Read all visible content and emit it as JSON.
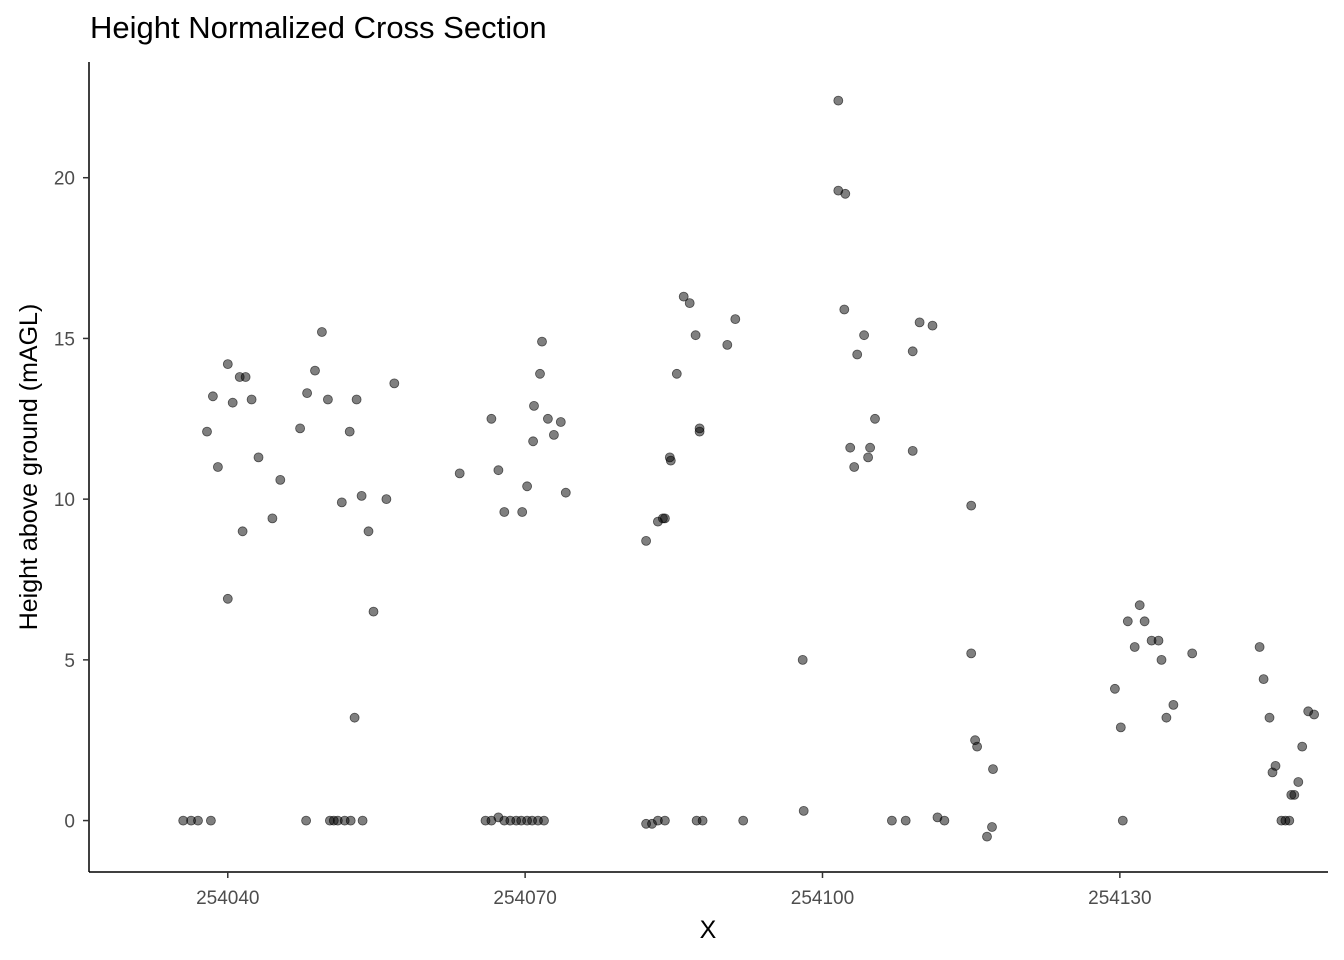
{
  "chart_data": {
    "type": "scatter",
    "title": "Height Normalized Cross Section",
    "xlabel": "X",
    "ylabel": "Height above ground (mAGL)",
    "xlim": [
      254026,
      254151
    ],
    "ylim": [
      -1.6,
      23.6
    ],
    "x_ticks": [
      254040,
      254070,
      254100,
      254130
    ],
    "x_tick_labels": [
      "254040",
      "254070",
      "254100",
      "254130"
    ],
    "y_ticks": [
      0,
      5,
      10,
      15,
      20
    ],
    "y_tick_labels": [
      "0",
      "5",
      "10",
      "15",
      "20"
    ],
    "grid": false,
    "point_color": "#000000",
    "point_alpha": 0.5,
    "points": [
      [
        254035.5,
        0
      ],
      [
        254036.3,
        0
      ],
      [
        254037,
        0
      ],
      [
        254038.3,
        0
      ],
      [
        254037.9,
        12.1
      ],
      [
        254038.5,
        13.2
      ],
      [
        254039,
        11
      ],
      [
        254040,
        14.2
      ],
      [
        254040.5,
        13
      ],
      [
        254041.2,
        13.8
      ],
      [
        254041.8,
        13.8
      ],
      [
        254042.4,
        13.1
      ],
      [
        254043.1,
        11.3
      ],
      [
        254041.5,
        9
      ],
      [
        254040,
        6.9
      ],
      [
        254044.5,
        9.4
      ],
      [
        254045.3,
        10.6
      ],
      [
        254047.3,
        12.2
      ],
      [
        254048,
        13.3
      ],
      [
        254048.8,
        14
      ],
      [
        254049.5,
        15.2
      ],
      [
        254050.1,
        13.1
      ],
      [
        254051.5,
        9.9
      ],
      [
        254052.3,
        12.1
      ],
      [
        254053,
        13.1
      ],
      [
        254053.5,
        10.1
      ],
      [
        254054.2,
        9
      ],
      [
        254054.7,
        6.5
      ],
      [
        254052.8,
        3.2
      ],
      [
        254056,
        10
      ],
      [
        254056.8,
        13.6
      ],
      [
        254047.9,
        0
      ],
      [
        254050.3,
        0
      ],
      [
        254050.7,
        0
      ],
      [
        254051.1,
        0
      ],
      [
        254051.8,
        0
      ],
      [
        254052.4,
        0
      ],
      [
        254053.6,
        0
      ],
      [
        254063.4,
        10.8
      ],
      [
        254066.6,
        12.5
      ],
      [
        254067.3,
        10.9
      ],
      [
        254067.9,
        9.6
      ],
      [
        254069.7,
        9.6
      ],
      [
        254070.2,
        10.4
      ],
      [
        254070.8,
        11.8
      ],
      [
        254070.9,
        12.9
      ],
      [
        254071.5,
        13.9
      ],
      [
        254071.7,
        14.9
      ],
      [
        254072.3,
        12.5
      ],
      [
        254072.9,
        12
      ],
      [
        254073.6,
        12.4
      ],
      [
        254074.1,
        10.2
      ],
      [
        254066,
        0
      ],
      [
        254066.6,
        0
      ],
      [
        254067.3,
        0.1
      ],
      [
        254067.9,
        0
      ],
      [
        254068.5,
        0
      ],
      [
        254069.1,
        0
      ],
      [
        254069.6,
        0
      ],
      [
        254070.2,
        0
      ],
      [
        254070.7,
        0
      ],
      [
        254071.3,
        0
      ],
      [
        254071.9,
        0
      ],
      [
        254082.2,
        8.7
      ],
      [
        254083.4,
        9.3
      ],
      [
        254083.9,
        9.4
      ],
      [
        254084.1,
        9.4
      ],
      [
        254084.6,
        11.3
      ],
      [
        254084.7,
        11.2
      ],
      [
        254085.3,
        13.9
      ],
      [
        254086,
        16.3
      ],
      [
        254086.6,
        16.1
      ],
      [
        254087.2,
        15.1
      ],
      [
        254087.6,
        12.1
      ],
      [
        254087.6,
        12.2
      ],
      [
        254090.4,
        14.8
      ],
      [
        254091.2,
        15.6
      ],
      [
        254082.2,
        -0.1
      ],
      [
        254082.8,
        -0.1
      ],
      [
        254083.4,
        0
      ],
      [
        254084.1,
        0
      ],
      [
        254087.3,
        0
      ],
      [
        254087.9,
        0
      ],
      [
        254092,
        0
      ],
      [
        254098,
        5
      ],
      [
        254098.1,
        0.3
      ],
      [
        254101.6,
        22.4
      ],
      [
        254101.6,
        19.6
      ],
      [
        254102.3,
        19.5
      ],
      [
        254102.2,
        15.9
      ],
      [
        254102.8,
        11.6
      ],
      [
        254103.2,
        11
      ],
      [
        254103.5,
        14.5
      ],
      [
        254104.2,
        15.1
      ],
      [
        254104.6,
        11.3
      ],
      [
        254104.8,
        11.6
      ],
      [
        254105.3,
        12.5
      ],
      [
        254109.1,
        14.6
      ],
      [
        254109.1,
        11.5
      ],
      [
        254109.8,
        15.5
      ],
      [
        254111.1,
        15.4
      ],
      [
        254107,
        0
      ],
      [
        254108.4,
        0
      ],
      [
        254111.6,
        0.1
      ],
      [
        254112.3,
        0
      ],
      [
        254115,
        9.8
      ],
      [
        254115,
        5.2
      ],
      [
        254115.4,
        2.5
      ],
      [
        254115.6,
        2.3
      ],
      [
        254117.2,
        1.6
      ],
      [
        254116.6,
        -0.5
      ],
      [
        254117.1,
        -0.2
      ],
      [
        254129.5,
        4.1
      ],
      [
        254130.1,
        2.9
      ],
      [
        254130.3,
        0
      ],
      [
        254130.8,
        6.2
      ],
      [
        254131.5,
        5.4
      ],
      [
        254132,
        6.7
      ],
      [
        254132.5,
        6.2
      ],
      [
        254133.2,
        5.6
      ],
      [
        254133.9,
        5.6
      ],
      [
        254134.2,
        5
      ],
      [
        254134.7,
        3.2
      ],
      [
        254135.4,
        3.6
      ],
      [
        254137.3,
        5.2
      ],
      [
        254144.1,
        5.4
      ],
      [
        254144.5,
        4.4
      ],
      [
        254145.1,
        3.2
      ],
      [
        254145.4,
        1.5
      ],
      [
        254145.7,
        1.7
      ],
      [
        254146.3,
        0
      ],
      [
        254146.7,
        0
      ],
      [
        254147.1,
        0
      ],
      [
        254147.3,
        0.8
      ],
      [
        254147.6,
        0.8
      ],
      [
        254148,
        1.2
      ],
      [
        254148.4,
        2.3
      ],
      [
        254149,
        3.4
      ],
      [
        254149.6,
        3.3
      ]
    ]
  }
}
